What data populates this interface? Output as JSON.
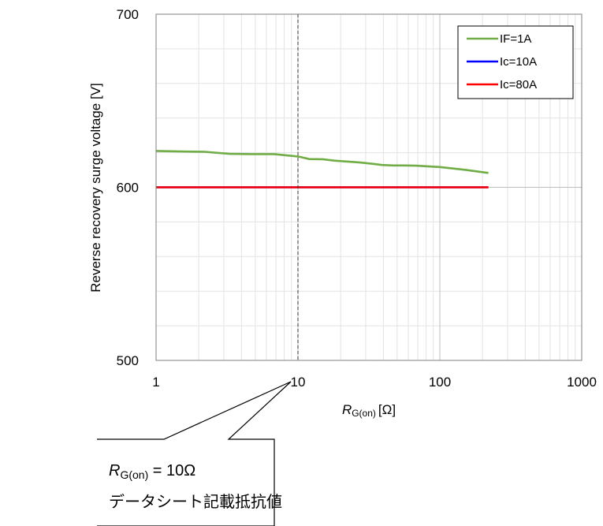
{
  "chart_data": {
    "type": "line",
    "title": "",
    "xlabel": {
      "main": "R",
      "sub": "G(on)",
      "unit": "[Ω]"
    },
    "ylabel": "Reverse recovery surge voltage [V]",
    "x_scale": "log",
    "xlim": [
      1,
      1000
    ],
    "ylim": [
      500,
      700
    ],
    "x_ticks": [
      1,
      10,
      100,
      1000
    ],
    "x_tick_labels": [
      "1",
      "10",
      "100",
      "1000"
    ],
    "y_ticks": [
      500,
      600,
      700
    ],
    "y_tick_labels": [
      "500",
      "600",
      "700"
    ],
    "grid": true,
    "legend_position": "top-right",
    "marker_line_x": 10,
    "series": [
      {
        "name": "IF=1A",
        "color": "#70ad47",
        "x": [
          1,
          1.5,
          2.2,
          3.3,
          4.7,
          6.8,
          10,
          12,
          15,
          18,
          22,
          27,
          33,
          39,
          47,
          56,
          68,
          82,
          100,
          150,
          220
        ],
        "y": [
          621,
          620.7,
          620.5,
          619.3,
          619.2,
          619.2,
          617.8,
          616.3,
          616.2,
          615.4,
          614.9,
          614.4,
          613.6,
          612.9,
          612.6,
          612.6,
          612.5,
          612.1,
          611.7,
          610.1,
          608.3
        ]
      },
      {
        "name": "Ic=10A",
        "color": "#0000ff",
        "x": [
          1,
          220
        ],
        "y": [
          600,
          600
        ]
      },
      {
        "name": "Ic=80A",
        "color": "#ff0000",
        "x": [
          1,
          220
        ],
        "y": [
          600,
          600
        ]
      }
    ]
  },
  "callout": {
    "line1_main": "R",
    "line1_sub": "G(on)",
    "line1_rest": " = 10Ω",
    "line2": "データシート記載抵抗値"
  }
}
